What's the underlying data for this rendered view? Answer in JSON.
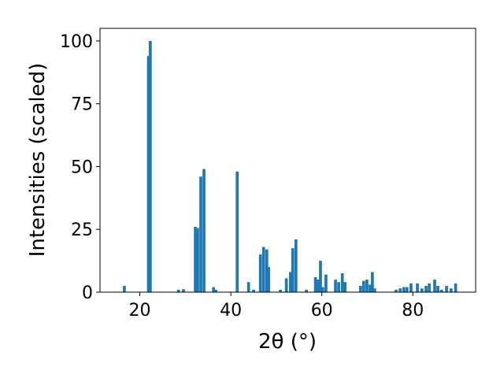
{
  "chart_data": {
    "type": "bar",
    "xlabel": "2θ (°)",
    "ylabel": "Intensities (scaled)",
    "color": "#1f77b4",
    "x": [
      16.6,
      21.9,
      22.3,
      28.5,
      29.6,
      32.2,
      32.7,
      33.4,
      34.1,
      36.2,
      36.7,
      41.4,
      43.9,
      45.0,
      46.5,
      47.2,
      47.9,
      48.3,
      50.9,
      52.2,
      53.1,
      53.6,
      54.3,
      56.6,
      58.6,
      59.2,
      59.7,
      60.2,
      60.9,
      63.0,
      63.7,
      64.5,
      65.1,
      68.5,
      69.2,
      69.9,
      70.6,
      71.1,
      71.6,
      76.3,
      77.2,
      78.0,
      78.7,
      79.6,
      81.0,
      82.0,
      82.9,
      83.6,
      84.8,
      85.5,
      86.3,
      87.4,
      88.4,
      89.4
    ],
    "values": [
      2.5,
      94,
      100,
      1,
      1.2,
      26,
      25.5,
      46,
      49,
      2,
      1,
      48,
      4,
      1,
      15,
      18,
      17,
      10,
      1,
      5.5,
      8,
      17.5,
      21,
      1,
      6,
      5,
      12.5,
      2,
      7,
      5,
      4,
      7.5,
      4,
      2.5,
      4.5,
      5,
      3,
      8,
      1.5,
      1,
      1.5,
      2,
      2,
      3.5,
      3.5,
      1.5,
      2.5,
      3.5,
      5,
      2.5,
      1,
      2.5,
      1.5,
      3.5
    ],
    "xlim": [
      11.25,
      93.8
    ],
    "ylim": [
      0,
      105
    ],
    "xticks": [
      20,
      40,
      60,
      80
    ],
    "yticks": [
      0,
      25,
      50,
      75,
      100
    ]
  }
}
